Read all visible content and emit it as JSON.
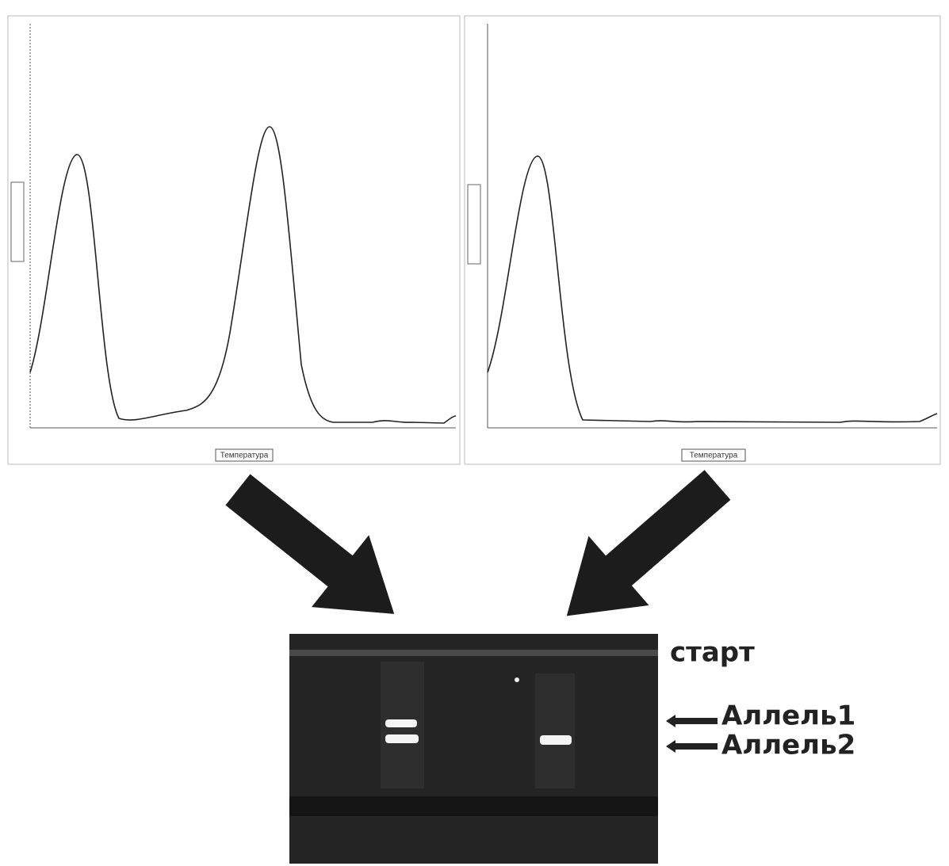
{
  "plots": [
    {
      "x_label": "Температура"
    },
    {
      "x_label": "Температура"
    }
  ],
  "gel": {
    "labels": [
      "старт",
      "Аллель1",
      "Аллель2"
    ]
  }
}
